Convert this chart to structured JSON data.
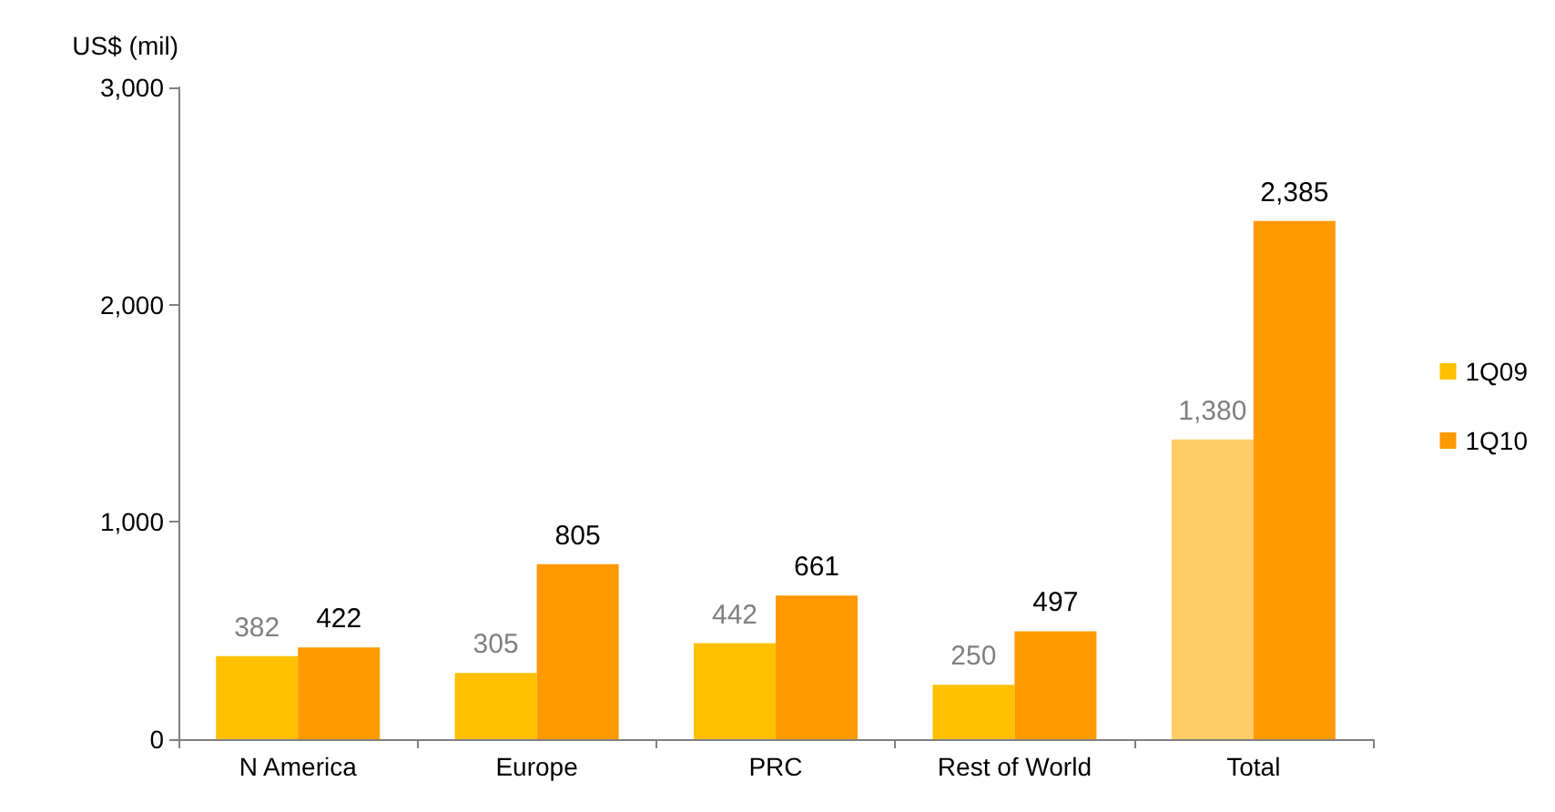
{
  "chart_data": {
    "type": "bar",
    "ylabel": "US$ (mil)",
    "categories": [
      "N America",
      "Europe",
      "PRC",
      "Rest of World",
      "Total"
    ],
    "series": [
      {
        "name": "1Q09",
        "color": "#ffc000",
        "colors": [
          "#ffc000",
          "#ffc000",
          "#ffc000",
          "#ffc000",
          "#ffcc66"
        ],
        "values": [
          382,
          305,
          442,
          250,
          1380
        ],
        "value_labels": [
          "382",
          "305",
          "442",
          "250",
          "1,380"
        ]
      },
      {
        "name": "1Q10",
        "color": "#ff9900",
        "values": [
          422,
          805,
          661,
          497,
          2385
        ],
        "value_labels": [
          "422",
          "805",
          "661",
          "497",
          "2,385"
        ]
      }
    ],
    "ylim": [
      0,
      3000
    ],
    "yticks": [
      0,
      {
        "value": 1000,
        "label": "1,000"
      },
      {
        "value": 2000,
        "label": "2,000"
      },
      {
        "value": 3000,
        "label": "3,000"
      }
    ],
    "grid": false,
    "legend": "right"
  }
}
